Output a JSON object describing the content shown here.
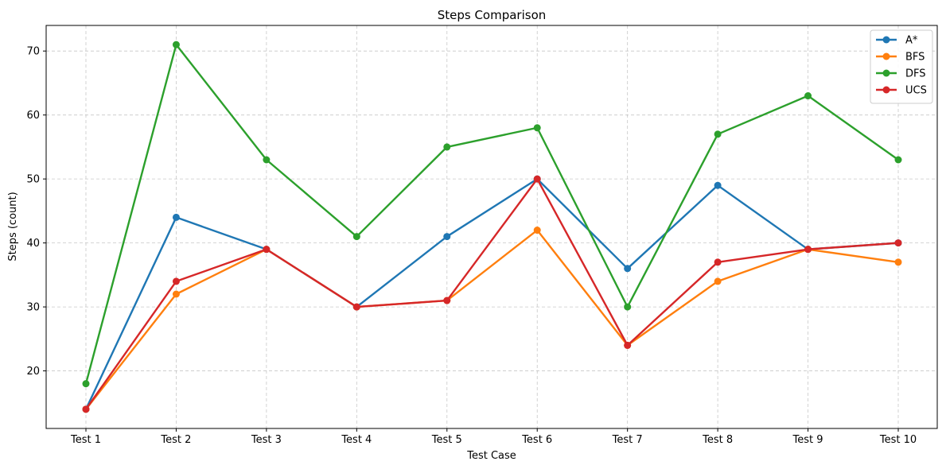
{
  "chart_data": {
    "type": "line",
    "title": "Steps Comparison",
    "xlabel": "Test Case",
    "ylabel": "Steps (count)",
    "categories": [
      "Test 1",
      "Test 2",
      "Test 3",
      "Test 4",
      "Test 5",
      "Test 6",
      "Test 7",
      "Test 8",
      "Test 9",
      "Test 10"
    ],
    "ylim": [
      11,
      74
    ],
    "yticks": [
      20,
      30,
      40,
      50,
      60,
      70
    ],
    "grid": true,
    "legend_position": "top-right",
    "series": [
      {
        "name": "A*",
        "color": "#1f77b4",
        "values": [
          14,
          44,
          39,
          30,
          41,
          50,
          36,
          49,
          39,
          40
        ]
      },
      {
        "name": "BFS",
        "color": "#ff7f0e",
        "values": [
          14,
          32,
          39,
          30,
          31,
          42,
          24,
          34,
          39,
          37
        ]
      },
      {
        "name": "DFS",
        "color": "#2ca02c",
        "values": [
          18,
          71,
          53,
          41,
          55,
          58,
          30,
          57,
          63,
          53
        ]
      },
      {
        "name": "UCS",
        "color": "#d62728",
        "values": [
          14,
          34,
          39,
          30,
          31,
          50,
          24,
          37,
          39,
          40
        ]
      }
    ]
  }
}
